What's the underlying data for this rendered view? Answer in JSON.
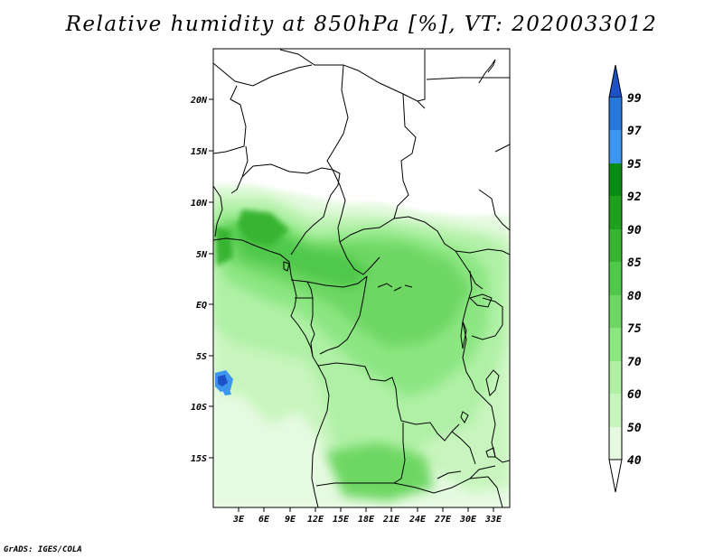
{
  "title": "Relative humidity at 850hPa [%], VT: 2020033012",
  "credit": "GrADS: IGES/COLA",
  "map": {
    "lat_labels": [
      "20N",
      "15N",
      "10N",
      "5N",
      "EQ",
      "5S",
      "10S",
      "15S"
    ],
    "lon_labels": [
      "3E",
      "6E",
      "9E",
      "12E",
      "15E",
      "18E",
      "21E",
      "24E",
      "27E",
      "30E",
      "33E"
    ]
  },
  "colorbar": {
    "labels": [
      "99",
      "97",
      "95",
      "92",
      "90",
      "85",
      "80",
      "75",
      "70",
      "60",
      "50",
      "40"
    ],
    "colors": [
      "#1e50c8",
      "#2878dc",
      "#3c96f0",
      "#0a8c14",
      "#1ea01e",
      "#37b432",
      "#50c84b",
      "#6ed764",
      "#8ce682",
      "#aff0a5",
      "#c8f5be",
      "#e6fae1",
      "#ffffff"
    ]
  }
}
